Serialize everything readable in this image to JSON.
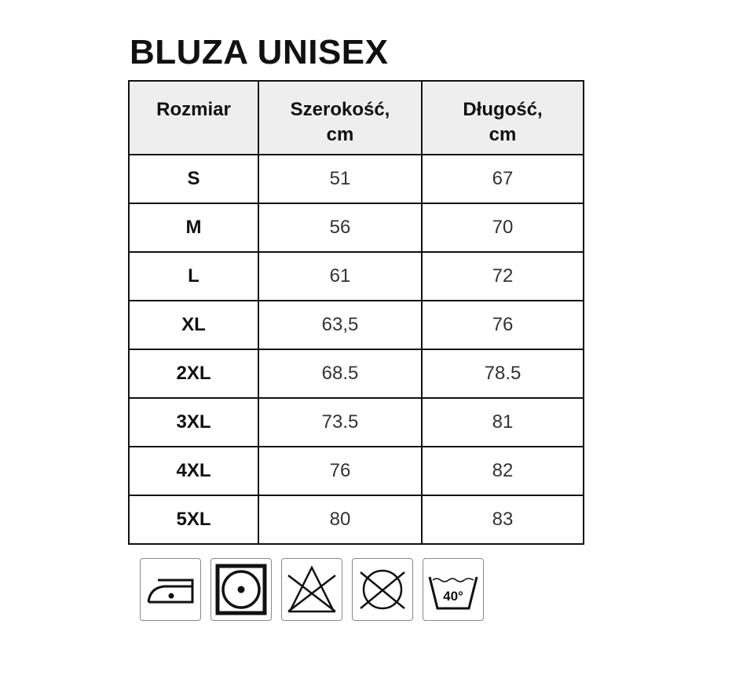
{
  "title": "BLUZA UNISEX",
  "table": {
    "headers": [
      "Rozmiar",
      "Szerokość, cm",
      "Długość, cm"
    ],
    "header_lines": [
      [
        "Rozmiar"
      ],
      [
        "Szerokość,",
        "cm"
      ],
      [
        "Długość,",
        "cm"
      ]
    ],
    "rows": [
      [
        "S",
        "51",
        "67"
      ],
      [
        "M",
        "56",
        "70"
      ],
      [
        "L",
        "61",
        "72"
      ],
      [
        "XL",
        "63,5",
        "76"
      ],
      [
        "2XL",
        "68.5",
        "78.5"
      ],
      [
        "3XL",
        "73.5",
        "81"
      ],
      [
        "4XL",
        "76",
        "82"
      ],
      [
        "5XL",
        "80",
        "83"
      ]
    ]
  },
  "care_icons": [
    {
      "name": "iron-low-heat-icon"
    },
    {
      "name": "tumble-dry-low-icon"
    },
    {
      "name": "do-not-bleach-icon"
    },
    {
      "name": "do-not-dry-clean-icon"
    },
    {
      "name": "wash-40-icon",
      "label": "40°"
    }
  ]
}
